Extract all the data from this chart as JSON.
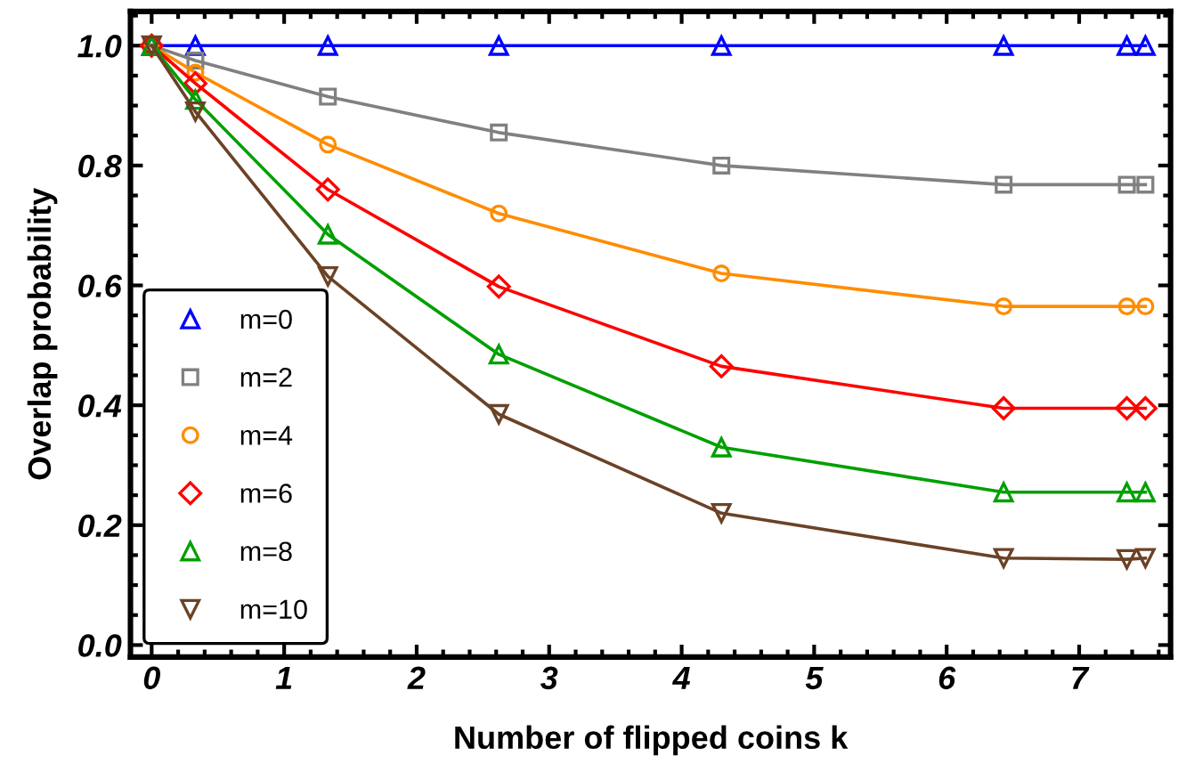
{
  "chart_data": {
    "type": "line",
    "xlabel": "Number of flipped coins k",
    "ylabel": "Overlap probability",
    "x": [
      0,
      0.33,
      1.33,
      2.62,
      4.3,
      6.43,
      7.36,
      7.5
    ],
    "series": [
      {
        "name": "m=0",
        "color": "#0000ff",
        "marker": "triangle",
        "values": [
          1.0,
          1.0,
          1.0,
          1.0,
          1.0,
          1.0,
          1.0,
          1.0
        ]
      },
      {
        "name": "m=2",
        "color": "#808080",
        "marker": "square",
        "values": [
          1.0,
          0.975,
          0.915,
          0.855,
          0.8,
          0.768,
          0.768,
          0.768
        ]
      },
      {
        "name": "m=4",
        "color": "#ff8c00",
        "marker": "circle",
        "values": [
          1.0,
          0.955,
          0.835,
          0.72,
          0.62,
          0.565,
          0.565,
          0.565
        ]
      },
      {
        "name": "m=6",
        "color": "#ff0000",
        "marker": "diamond",
        "values": [
          1.0,
          0.937,
          0.76,
          0.598,
          0.465,
          0.395,
          0.395,
          0.395
        ]
      },
      {
        "name": "m=8",
        "color": "#00a000",
        "marker": "triangle",
        "values": [
          1.0,
          0.91,
          0.685,
          0.485,
          0.33,
          0.255,
          0.255,
          0.255
        ]
      },
      {
        "name": "m=10",
        "color": "#6b4226",
        "marker": "triangle_down",
        "values": [
          1.0,
          0.89,
          0.615,
          0.385,
          0.22,
          0.145,
          0.143,
          0.145
        ]
      }
    ],
    "xlim": [
      -0.16,
      7.69
    ],
    "ylim": [
      -0.02,
      1.057
    ],
    "xticks": [
      0,
      1,
      2,
      3,
      4,
      5,
      6,
      7
    ],
    "yticks": [
      {
        "value": 0.0,
        "label": "0.0"
      },
      0.2,
      0.4,
      0.6,
      0.8,
      {
        "value": 1.0,
        "label": "1.0"
      }
    ],
    "grid": false,
    "legend": "bottom left",
    "line_style": "solid"
  }
}
